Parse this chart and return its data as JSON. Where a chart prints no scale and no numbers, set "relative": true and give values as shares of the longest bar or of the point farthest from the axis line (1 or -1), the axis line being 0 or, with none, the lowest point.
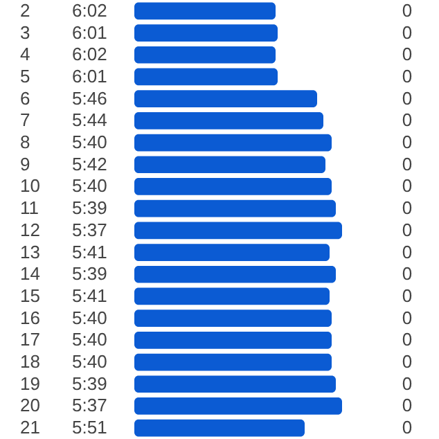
{
  "chart_data": {
    "type": "bar",
    "orientation": "horizontal",
    "relative": true,
    "color": "#0b5bd3",
    "categories": [
      "2",
      "3",
      "4",
      "5",
      "6",
      "7",
      "8",
      "9",
      "10",
      "11",
      "12",
      "13",
      "14",
      "15",
      "16",
      "17",
      "18",
      "19",
      "20",
      "21"
    ],
    "values": [
      0.68,
      0.69,
      0.68,
      0.69,
      0.88,
      0.91,
      0.95,
      0.92,
      0.95,
      0.97,
      1,
      0.94,
      0.97,
      0.94,
      0.95,
      0.95,
      0.95,
      0.97,
      1,
      0.82
    ],
    "annotations": [
      "6:02",
      "6:01",
      "6:02",
      "6:01",
      "5:46",
      "5:44",
      "5:40",
      "5:42",
      "5:40",
      "5:39",
      "5:37",
      "5:41",
      "5:39",
      "5:41",
      "5:40",
      "5:40",
      "5:40",
      "5:39",
      "5:37",
      "5:51",
      "0",
      "0",
      "0",
      "0",
      "0",
      "0",
      "0",
      "0",
      "0",
      "0",
      "0",
      "0",
      "0",
      "0",
      "0",
      "0",
      "0",
      "0",
      "0",
      "0"
    ]
  }
}
